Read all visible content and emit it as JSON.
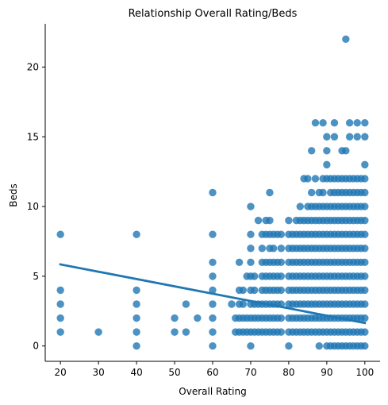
{
  "chart_data": {
    "type": "scatter",
    "title": "Relationship Overall Rating/Beds",
    "xlabel": "Overall Rating",
    "ylabel": "Beds",
    "xlim": [
      16.0,
      104.0
    ],
    "ylim": [
      -1.1,
      23.1
    ],
    "xticks": [
      20,
      30,
      40,
      50,
      60,
      70,
      80,
      90,
      100
    ],
    "yticks": [
      0,
      5,
      10,
      15,
      20
    ],
    "grid": false,
    "legend": "none",
    "point_color": "#1f77b4",
    "line_color": "#1f77b4",
    "regression_line": {
      "x": [
        20,
        100
      ],
      "y": [
        5.85,
        1.65
      ]
    },
    "points": [
      [
        20,
        1
      ],
      [
        20,
        2
      ],
      [
        20,
        3
      ],
      [
        20,
        4
      ],
      [
        20,
        8
      ],
      [
        30,
        1
      ],
      [
        40,
        0
      ],
      [
        40,
        1
      ],
      [
        40,
        2
      ],
      [
        40,
        3
      ],
      [
        40,
        4
      ],
      [
        40,
        8
      ],
      [
        50,
        1
      ],
      [
        50,
        2
      ],
      [
        53,
        1
      ],
      [
        53,
        3
      ],
      [
        56,
        2
      ],
      [
        60,
        0
      ],
      [
        60,
        1
      ],
      [
        60,
        2
      ],
      [
        60,
        3
      ],
      [
        60,
        4
      ],
      [
        60,
        5
      ],
      [
        60,
        6
      ],
      [
        60,
        8
      ],
      [
        60,
        11
      ],
      [
        65,
        3
      ],
      [
        66,
        1
      ],
      [
        66,
        2
      ],
      [
        67,
        1
      ],
      [
        67,
        2
      ],
      [
        67,
        3
      ],
      [
        67,
        4
      ],
      [
        67,
        6
      ],
      [
        68,
        1
      ],
      [
        68,
        2
      ],
      [
        68,
        3
      ],
      [
        68,
        4
      ],
      [
        69,
        1
      ],
      [
        69,
        2
      ],
      [
        69,
        5
      ],
      [
        70,
        0
      ],
      [
        70,
        1
      ],
      [
        70,
        2
      ],
      [
        70,
        3
      ],
      [
        70,
        4
      ],
      [
        70,
        5
      ],
      [
        70,
        6
      ],
      [
        70,
        7
      ],
      [
        70,
        8
      ],
      [
        70,
        10
      ],
      [
        71,
        1
      ],
      [
        71,
        2
      ],
      [
        71,
        3
      ],
      [
        71,
        4
      ],
      [
        71,
        5
      ],
      [
        72,
        1
      ],
      [
        72,
        2
      ],
      [
        72,
        3
      ],
      [
        72,
        9
      ],
      [
        73,
        1
      ],
      [
        73,
        2
      ],
      [
        73,
        3
      ],
      [
        73,
        4
      ],
      [
        73,
        5
      ],
      [
        73,
        6
      ],
      [
        73,
        7
      ],
      [
        73,
        8
      ],
      [
        74,
        1
      ],
      [
        74,
        2
      ],
      [
        74,
        3
      ],
      [
        74,
        4
      ],
      [
        74,
        5
      ],
      [
        74,
        6
      ],
      [
        74,
        8
      ],
      [
        74,
        9
      ],
      [
        75,
        1
      ],
      [
        75,
        2
      ],
      [
        75,
        3
      ],
      [
        75,
        4
      ],
      [
        75,
        5
      ],
      [
        75,
        6
      ],
      [
        75,
        7
      ],
      [
        75,
        8
      ],
      [
        75,
        9
      ],
      [
        75,
        11
      ],
      [
        76,
        1
      ],
      [
        76,
        2
      ],
      [
        76,
        3
      ],
      [
        76,
        4
      ],
      [
        76,
        5
      ],
      [
        76,
        6
      ],
      [
        76,
        7
      ],
      [
        76,
        8
      ],
      [
        77,
        1
      ],
      [
        77,
        2
      ],
      [
        77,
        3
      ],
      [
        77,
        4
      ],
      [
        77,
        5
      ],
      [
        77,
        6
      ],
      [
        77,
        8
      ],
      [
        78,
        1
      ],
      [
        78,
        2
      ],
      [
        78,
        3
      ],
      [
        78,
        4
      ],
      [
        78,
        5
      ],
      [
        78,
        6
      ],
      [
        78,
        7
      ],
      [
        78,
        8
      ],
      [
        80,
        0
      ],
      [
        80,
        1
      ],
      [
        80,
        2
      ],
      [
        80,
        3
      ],
      [
        80,
        4
      ],
      [
        80,
        5
      ],
      [
        80,
        6
      ],
      [
        80,
        7
      ],
      [
        80,
        8
      ],
      [
        80,
        9
      ],
      [
        81,
        1
      ],
      [
        81,
        2
      ],
      [
        81,
        3
      ],
      [
        81,
        4
      ],
      [
        81,
        5
      ],
      [
        81,
        6
      ],
      [
        81,
        7
      ],
      [
        81,
        8
      ],
      [
        82,
        1
      ],
      [
        82,
        2
      ],
      [
        82,
        3
      ],
      [
        82,
        4
      ],
      [
        82,
        5
      ],
      [
        82,
        6
      ],
      [
        82,
        7
      ],
      [
        82,
        8
      ],
      [
        82,
        9
      ],
      [
        83,
        1
      ],
      [
        83,
        2
      ],
      [
        83,
        3
      ],
      [
        83,
        4
      ],
      [
        83,
        5
      ],
      [
        83,
        6
      ],
      [
        83,
        7
      ],
      [
        83,
        8
      ],
      [
        83,
        9
      ],
      [
        83,
        10
      ],
      [
        84,
        1
      ],
      [
        84,
        2
      ],
      [
        84,
        3
      ],
      [
        84,
        4
      ],
      [
        84,
        5
      ],
      [
        84,
        6
      ],
      [
        84,
        7
      ],
      [
        84,
        8
      ],
      [
        84,
        9
      ],
      [
        84,
        12
      ],
      [
        85,
        1
      ],
      [
        85,
        2
      ],
      [
        85,
        3
      ],
      [
        85,
        4
      ],
      [
        85,
        5
      ],
      [
        85,
        6
      ],
      [
        85,
        7
      ],
      [
        85,
        8
      ],
      [
        85,
        9
      ],
      [
        85,
        10
      ],
      [
        85,
        12
      ],
      [
        86,
        1
      ],
      [
        86,
        2
      ],
      [
        86,
        3
      ],
      [
        86,
        4
      ],
      [
        86,
        5
      ],
      [
        86,
        6
      ],
      [
        86,
        7
      ],
      [
        86,
        8
      ],
      [
        86,
        9
      ],
      [
        86,
        10
      ],
      [
        86,
        11
      ],
      [
        86,
        14
      ],
      [
        87,
        1
      ],
      [
        87,
        2
      ],
      [
        87,
        3
      ],
      [
        87,
        4
      ],
      [
        87,
        5
      ],
      [
        87,
        6
      ],
      [
        87,
        7
      ],
      [
        87,
        8
      ],
      [
        87,
        9
      ],
      [
        87,
        10
      ],
      [
        87,
        12
      ],
      [
        87,
        16
      ],
      [
        88,
        0
      ],
      [
        88,
        1
      ],
      [
        88,
        2
      ],
      [
        88,
        3
      ],
      [
        88,
        4
      ],
      [
        88,
        5
      ],
      [
        88,
        6
      ],
      [
        88,
        7
      ],
      [
        88,
        8
      ],
      [
        88,
        9
      ],
      [
        88,
        10
      ],
      [
        88,
        11
      ],
      [
        89,
        1
      ],
      [
        89,
        2
      ],
      [
        89,
        3
      ],
      [
        89,
        4
      ],
      [
        89,
        5
      ],
      [
        89,
        6
      ],
      [
        89,
        7
      ],
      [
        89,
        8
      ],
      [
        89,
        9
      ],
      [
        89,
        10
      ],
      [
        89,
        11
      ],
      [
        89,
        12
      ],
      [
        89,
        16
      ],
      [
        90,
        0
      ],
      [
        90,
        1
      ],
      [
        90,
        2
      ],
      [
        90,
        3
      ],
      [
        90,
        4
      ],
      [
        90,
        5
      ],
      [
        90,
        6
      ],
      [
        90,
        7
      ],
      [
        90,
        8
      ],
      [
        90,
        9
      ],
      [
        90,
        10
      ],
      [
        90,
        12
      ],
      [
        90,
        13
      ],
      [
        90,
        14
      ],
      [
        90,
        15
      ],
      [
        91,
        0
      ],
      [
        91,
        1
      ],
      [
        91,
        2
      ],
      [
        91,
        3
      ],
      [
        91,
        4
      ],
      [
        91,
        5
      ],
      [
        91,
        6
      ],
      [
        91,
        7
      ],
      [
        91,
        8
      ],
      [
        91,
        9
      ],
      [
        91,
        10
      ],
      [
        91,
        11
      ],
      [
        91,
        12
      ],
      [
        92,
        0
      ],
      [
        92,
        1
      ],
      [
        92,
        2
      ],
      [
        92,
        3
      ],
      [
        92,
        4
      ],
      [
        92,
        5
      ],
      [
        92,
        6
      ],
      [
        92,
        7
      ],
      [
        92,
        8
      ],
      [
        92,
        9
      ],
      [
        92,
        10
      ],
      [
        92,
        11
      ],
      [
        92,
        12
      ],
      [
        92,
        15
      ],
      [
        92,
        16
      ],
      [
        93,
        0
      ],
      [
        93,
        1
      ],
      [
        93,
        2
      ],
      [
        93,
        3
      ],
      [
        93,
        4
      ],
      [
        93,
        5
      ],
      [
        93,
        6
      ],
      [
        93,
        7
      ],
      [
        93,
        8
      ],
      [
        93,
        9
      ],
      [
        93,
        10
      ],
      [
        93,
        11
      ],
      [
        93,
        12
      ],
      [
        94,
        0
      ],
      [
        94,
        1
      ],
      [
        94,
        2
      ],
      [
        94,
        3
      ],
      [
        94,
        4
      ],
      [
        94,
        5
      ],
      [
        94,
        6
      ],
      [
        94,
        7
      ],
      [
        94,
        8
      ],
      [
        94,
        9
      ],
      [
        94,
        10
      ],
      [
        94,
        11
      ],
      [
        94,
        12
      ],
      [
        94,
        14
      ],
      [
        95,
        0
      ],
      [
        95,
        1
      ],
      [
        95,
        2
      ],
      [
        95,
        3
      ],
      [
        95,
        4
      ],
      [
        95,
        5
      ],
      [
        95,
        6
      ],
      [
        95,
        7
      ],
      [
        95,
        8
      ],
      [
        95,
        9
      ],
      [
        95,
        10
      ],
      [
        95,
        11
      ],
      [
        95,
        12
      ],
      [
        95,
        14
      ],
      [
        95,
        22
      ],
      [
        96,
        0
      ],
      [
        96,
        1
      ],
      [
        96,
        2
      ],
      [
        96,
        3
      ],
      [
        96,
        4
      ],
      [
        96,
        5
      ],
      [
        96,
        6
      ],
      [
        96,
        7
      ],
      [
        96,
        8
      ],
      [
        96,
        9
      ],
      [
        96,
        10
      ],
      [
        96,
        11
      ],
      [
        96,
        12
      ],
      [
        96,
        15
      ],
      [
        96,
        16
      ],
      [
        97,
        0
      ],
      [
        97,
        1
      ],
      [
        97,
        2
      ],
      [
        97,
        3
      ],
      [
        97,
        4
      ],
      [
        97,
        5
      ],
      [
        97,
        6
      ],
      [
        97,
        7
      ],
      [
        97,
        8
      ],
      [
        97,
        9
      ],
      [
        97,
        10
      ],
      [
        97,
        11
      ],
      [
        97,
        12
      ],
      [
        98,
        0
      ],
      [
        98,
        1
      ],
      [
        98,
        2
      ],
      [
        98,
        3
      ],
      [
        98,
        4
      ],
      [
        98,
        5
      ],
      [
        98,
        6
      ],
      [
        98,
        7
      ],
      [
        98,
        8
      ],
      [
        98,
        9
      ],
      [
        98,
        10
      ],
      [
        98,
        11
      ],
      [
        98,
        12
      ],
      [
        98,
        15
      ],
      [
        98,
        16
      ],
      [
        99,
        0
      ],
      [
        99,
        1
      ],
      [
        99,
        2
      ],
      [
        99,
        3
      ],
      [
        99,
        4
      ],
      [
        99,
        5
      ],
      [
        99,
        6
      ],
      [
        99,
        7
      ],
      [
        99,
        8
      ],
      [
        99,
        9
      ],
      [
        99,
        10
      ],
      [
        99,
        11
      ],
      [
        99,
        12
      ],
      [
        100,
        0
      ],
      [
        100,
        1
      ],
      [
        100,
        2
      ],
      [
        100,
        3
      ],
      [
        100,
        4
      ],
      [
        100,
        5
      ],
      [
        100,
        6
      ],
      [
        100,
        7
      ],
      [
        100,
        8
      ],
      [
        100,
        9
      ],
      [
        100,
        10
      ],
      [
        100,
        11
      ],
      [
        100,
        12
      ],
      [
        100,
        13
      ],
      [
        100,
        15
      ],
      [
        100,
        16
      ]
    ]
  }
}
